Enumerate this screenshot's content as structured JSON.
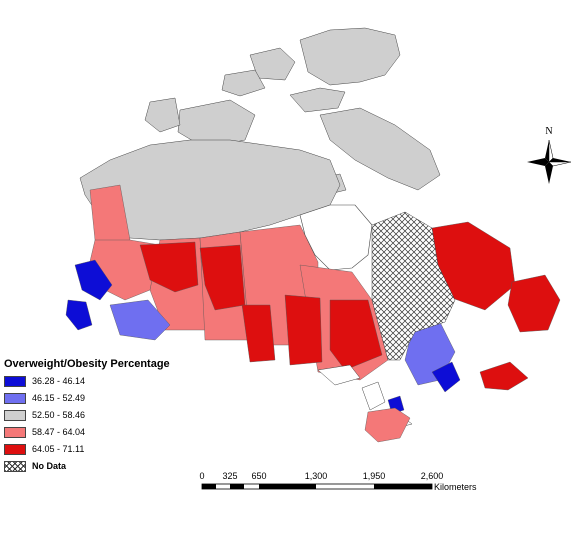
{
  "legend": {
    "title": "Overweight/Obesity Percentage",
    "items": [
      {
        "label": "36.28 - 46.14",
        "color": "#0d0dd6"
      },
      {
        "label": "46.15 - 52.49",
        "color": "#6f6ff0"
      },
      {
        "label": "52.50 - 58.46",
        "color": "#cfcfcf"
      },
      {
        "label": "58.47 - 64.04",
        "color": "#f47878"
      },
      {
        "label": "64.05 - 71.11",
        "color": "#dd0f0f"
      },
      {
        "label": "No Data",
        "color": "hatch"
      }
    ]
  },
  "scale_bar": {
    "ticks": [
      "0",
      "325",
      "650",
      "1,300",
      "1,950",
      "2,600"
    ],
    "unit": "Kilometers"
  },
  "north_arrow": {
    "label": "N"
  }
}
